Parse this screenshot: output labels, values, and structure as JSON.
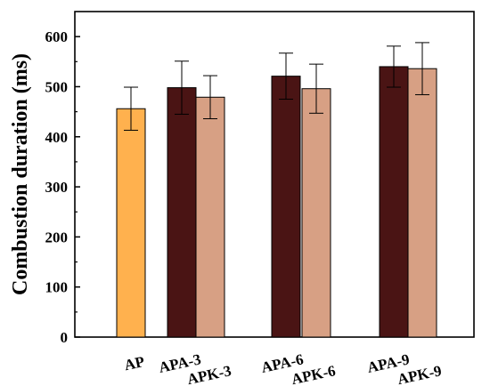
{
  "chart_data": {
    "type": "bar",
    "title": "",
    "xlabel": "",
    "ylabel": "Combustion duration (ms)",
    "ylim": [
      0,
      650
    ],
    "yticks": [
      0,
      100,
      200,
      300,
      400,
      500,
      600
    ],
    "grid": false,
    "bars": [
      {
        "category": "AP",
        "value": 456,
        "error": 43,
        "color": "#FFB14E"
      },
      {
        "category": "APA-3",
        "value": 498,
        "error": 53,
        "color": "#4A1414"
      },
      {
        "category": "APK-3",
        "value": 479,
        "error": 43,
        "color": "#D7A084"
      },
      {
        "category": "APA-6",
        "value": 521,
        "error": 46,
        "color": "#4A1414"
      },
      {
        "category": "APK-6",
        "value": 496,
        "error": 49,
        "color": "#D7A084"
      },
      {
        "category": "APA-9",
        "value": 540,
        "error": 41,
        "color": "#4A1414"
      },
      {
        "category": "APK-9",
        "value": 536,
        "error": 52,
        "color": "#D7A084"
      }
    ]
  }
}
